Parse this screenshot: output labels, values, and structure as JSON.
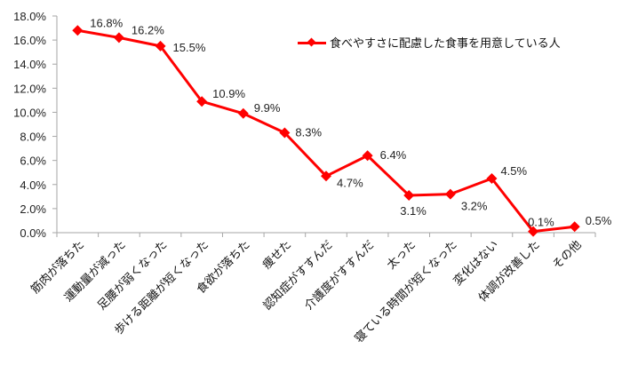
{
  "chart_data": {
    "type": "line",
    "title": "",
    "xlabel": "",
    "ylabel": "",
    "ylim": [
      0,
      18
    ],
    "yticks": [
      "0.0%",
      "2.0%",
      "4.0%",
      "6.0%",
      "8.0%",
      "10.0%",
      "12.0%",
      "14.0%",
      "16.0%",
      "18.0%"
    ],
    "grid": false,
    "legend_position": "upper-right",
    "categories": [
      "筋肉が落ちた",
      "運動量が減った",
      "足腰が弱くなった",
      "歩ける距離が短くなった",
      "食欲が落ちた",
      "痩せた",
      "認知症がすすんだ",
      "介護度がすすんだ",
      "太った",
      "寝ている時間が短くなった",
      "変化はない",
      "体調が改善した",
      "その他"
    ],
    "series": [
      {
        "name": "食べやすさに配慮した食事を用意している人",
        "color": "#ff0000",
        "marker": "diamond",
        "values": [
          16.8,
          16.2,
          15.5,
          10.9,
          9.9,
          8.3,
          4.7,
          6.4,
          3.1,
          3.2,
          4.5,
          0.1,
          0.5
        ],
        "labels": [
          "16.8%",
          "16.2%",
          "15.5%",
          "10.9%",
          "9.9%",
          "8.3%",
          "4.7%",
          "6.4%",
          "3.1%",
          "3.2%",
          "4.5%",
          "0.1%",
          "0.5%"
        ]
      }
    ]
  },
  "legend": {
    "label": "食べやすさに配慮した食事を用意している人"
  }
}
